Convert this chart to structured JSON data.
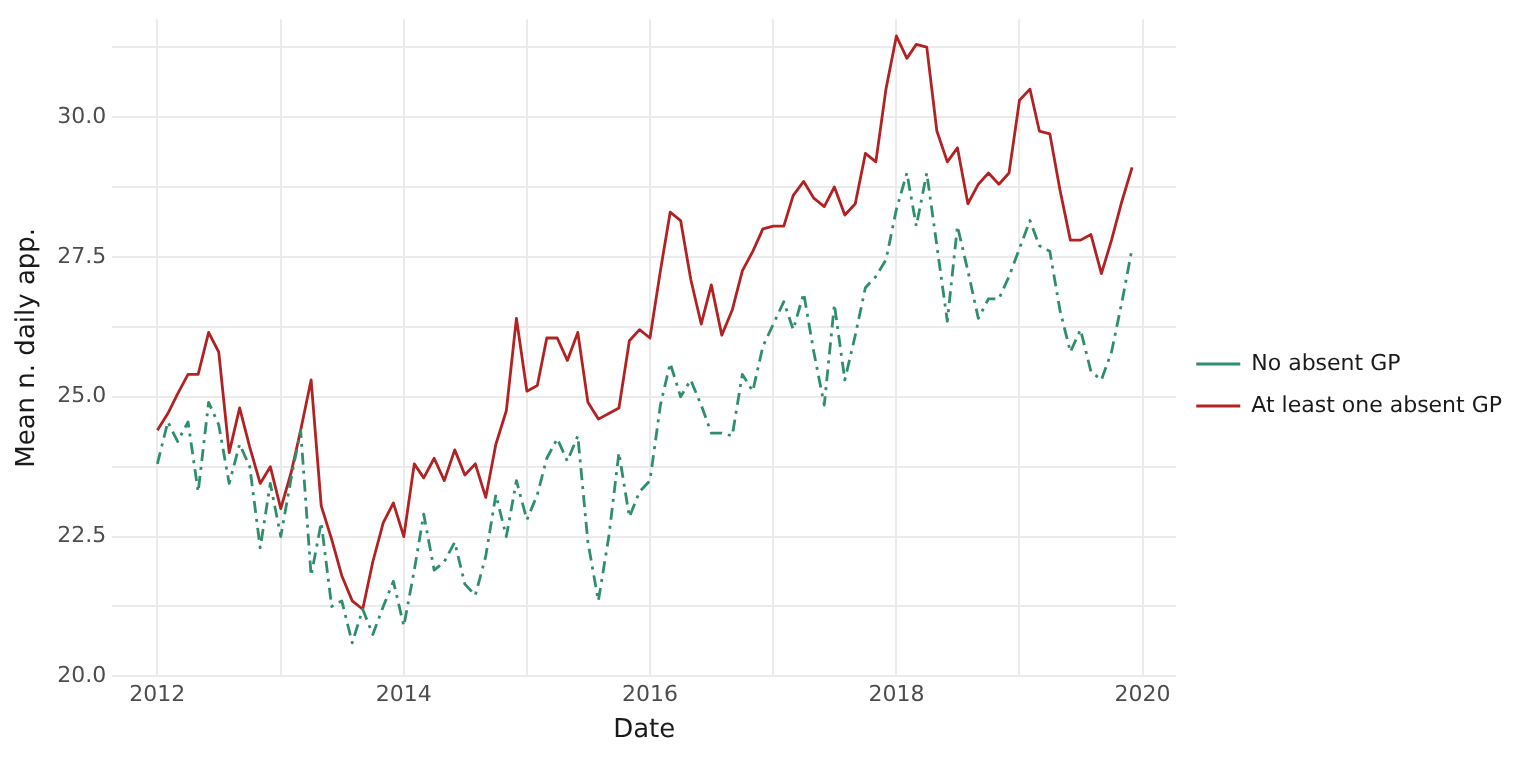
{
  "chart_data": {
    "type": "line",
    "xlabel": "Date",
    "ylabel": "Mean n. daily app.",
    "x": [
      "2012-01",
      "2012-02",
      "2012-03",
      "2012-04",
      "2012-05",
      "2012-06",
      "2012-07",
      "2012-08",
      "2012-09",
      "2012-10",
      "2012-11",
      "2012-12",
      "2013-01",
      "2013-02",
      "2013-03",
      "2013-04",
      "2013-05",
      "2013-06",
      "2013-07",
      "2013-08",
      "2013-09",
      "2013-10",
      "2013-11",
      "2013-12",
      "2014-01",
      "2014-02",
      "2014-03",
      "2014-04",
      "2014-05",
      "2014-06",
      "2014-07",
      "2014-08",
      "2014-09",
      "2014-10",
      "2014-11",
      "2014-12",
      "2015-01",
      "2015-02",
      "2015-03",
      "2015-04",
      "2015-05",
      "2015-06",
      "2015-07",
      "2015-08",
      "2015-09",
      "2015-10",
      "2015-11",
      "2015-12",
      "2016-01",
      "2016-02",
      "2016-03",
      "2016-04",
      "2016-05",
      "2016-06",
      "2016-07",
      "2016-08",
      "2016-09",
      "2016-10",
      "2016-11",
      "2016-12",
      "2017-01",
      "2017-02",
      "2017-03",
      "2017-04",
      "2017-05",
      "2017-06",
      "2017-07",
      "2017-08",
      "2017-09",
      "2017-10",
      "2017-11",
      "2017-12",
      "2018-01",
      "2018-02",
      "2018-03",
      "2018-04",
      "2018-05",
      "2018-06",
      "2018-07",
      "2018-08",
      "2018-09",
      "2018-10",
      "2018-11",
      "2018-12",
      "2019-01",
      "2019-02",
      "2019-03",
      "2019-04",
      "2019-05",
      "2019-06",
      "2019-07",
      "2019-08",
      "2019-09",
      "2019-10",
      "2019-11",
      "2019-12"
    ],
    "series": [
      {
        "name": "No absent GP",
        "color": "#2f8f6b",
        "line_style": "dashed",
        "values": [
          23.8,
          24.55,
          24.2,
          24.55,
          23.3,
          24.9,
          24.5,
          23.45,
          24.15,
          23.75,
          22.3,
          23.45,
          22.5,
          23.55,
          24.4,
          21.8,
          22.75,
          21.25,
          21.35,
          20.6,
          21.2,
          20.75,
          21.25,
          21.7,
          20.9,
          21.9,
          22.9,
          21.9,
          22.05,
          22.4,
          21.65,
          21.45,
          22.15,
          23.25,
          22.5,
          23.5,
          22.8,
          23.25,
          23.9,
          24.25,
          23.85,
          24.3,
          22.4,
          21.35,
          22.5,
          24.0,
          22.85,
          23.3,
          23.5,
          24.85,
          25.6,
          25.0,
          25.3,
          24.85,
          24.35,
          24.35,
          24.3,
          25.4,
          25.1,
          25.9,
          26.3,
          26.7,
          26.2,
          26.85,
          25.8,
          24.85,
          26.65,
          25.3,
          26.1,
          26.95,
          27.15,
          27.45,
          28.35,
          29.0,
          28.05,
          29.0,
          27.7,
          26.35,
          28.05,
          27.25,
          26.4,
          26.75,
          26.75,
          27.15,
          27.65,
          28.15,
          27.7,
          27.6,
          26.55,
          25.8,
          26.2,
          25.45,
          25.3,
          25.8,
          26.7,
          27.65
        ]
      },
      {
        "name": "At least one absent GP",
        "color": "#b22222",
        "line_style": "solid",
        "values": [
          24.4,
          24.7,
          25.05,
          25.4,
          25.4,
          26.15,
          25.8,
          24.0,
          24.8,
          24.1,
          23.45,
          23.75,
          23.0,
          23.65,
          24.4,
          25.3,
          23.05,
          22.45,
          21.8,
          21.35,
          21.2,
          22.05,
          22.75,
          23.1,
          22.5,
          23.8,
          23.55,
          23.9,
          23.5,
          24.05,
          23.6,
          23.8,
          23.2,
          24.15,
          24.75,
          26.4,
          25.1,
          25.2,
          26.05,
          26.05,
          25.65,
          26.15,
          24.9,
          24.6,
          24.7,
          24.8,
          26.0,
          26.2,
          26.05,
          27.25,
          28.3,
          28.15,
          27.1,
          26.3,
          27.0,
          26.1,
          26.55,
          27.25,
          27.6,
          28.0,
          28.05,
          28.05,
          28.6,
          28.85,
          28.55,
          28.4,
          28.75,
          28.25,
          28.45,
          29.35,
          29.2,
          30.5,
          31.45,
          31.05,
          31.3,
          31.25,
          29.75,
          29.2,
          29.45,
          28.45,
          28.8,
          29.0,
          28.8,
          29.0,
          30.3,
          30.5,
          29.75,
          29.7,
          28.7,
          27.8,
          27.8,
          27.9,
          27.2,
          27.8,
          28.5,
          29.1
        ]
      }
    ],
    "xlim": [
      "2011-08-20",
      "2020-04-10"
    ],
    "xticks": [
      {
        "value": "2012",
        "label": "2012"
      },
      {
        "value": "2013",
        "label": null
      },
      {
        "value": "2014",
        "label": "2014"
      },
      {
        "value": "2015",
        "label": null
      },
      {
        "value": "2016",
        "label": "2016"
      },
      {
        "value": "2017",
        "label": null
      },
      {
        "value": "2018",
        "label": "2018"
      },
      {
        "value": "2019",
        "label": null
      },
      {
        "value": "2020",
        "label": "2020"
      }
    ],
    "ylim": [
      20,
      31.75
    ],
    "yticks": [
      {
        "value": 20,
        "label": "20.0"
      },
      {
        "value": 21.25,
        "label": null
      },
      {
        "value": 22.5,
        "label": "22.5"
      },
      {
        "value": 23.75,
        "label": null
      },
      {
        "value": 25,
        "label": "25.0"
      },
      {
        "value": 26.25,
        "label": null
      },
      {
        "value": 27.5,
        "label": "27.5"
      },
      {
        "value": 28.75,
        "label": null
      },
      {
        "value": 30,
        "label": "30.0"
      },
      {
        "value": 31.25,
        "label": null
      }
    ],
    "grid": true,
    "legend": "right",
    "marker": "none"
  }
}
